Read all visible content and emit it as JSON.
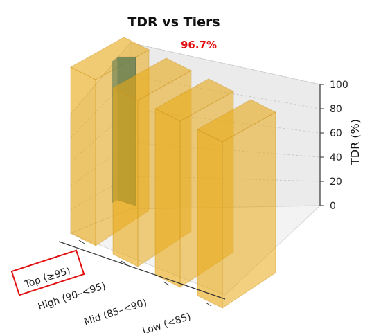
{
  "chart_data": {
    "type": "bar",
    "projection": "3d",
    "title": "TDR vs Tiers",
    "xlabel": "",
    "ylabel": "",
    "zlabel": "TDR (%)",
    "zlim": [
      0,
      100
    ],
    "zticks": [
      "0",
      "20",
      "40",
      "60",
      "80",
      "100"
    ],
    "categories": [
      "Top (≥95)",
      "High (90–<95)",
      "Mid (85–<90)",
      "Low (<85)"
    ],
    "series": [
      {
        "values": [
          96.7,
          0,
          0,
          0
        ],
        "color": "#5e7a50"
      },
      {
        "values": [
          100,
          100,
          100,
          100
        ],
        "color": "#e8a917"
      }
    ],
    "highlighted_category": "Top (≥95)",
    "annotation": "96.7%",
    "grid": true,
    "colors": {
      "bar": "#e8a917",
      "inner_bar": "#5e7a50",
      "highlight": "#e01010"
    }
  }
}
